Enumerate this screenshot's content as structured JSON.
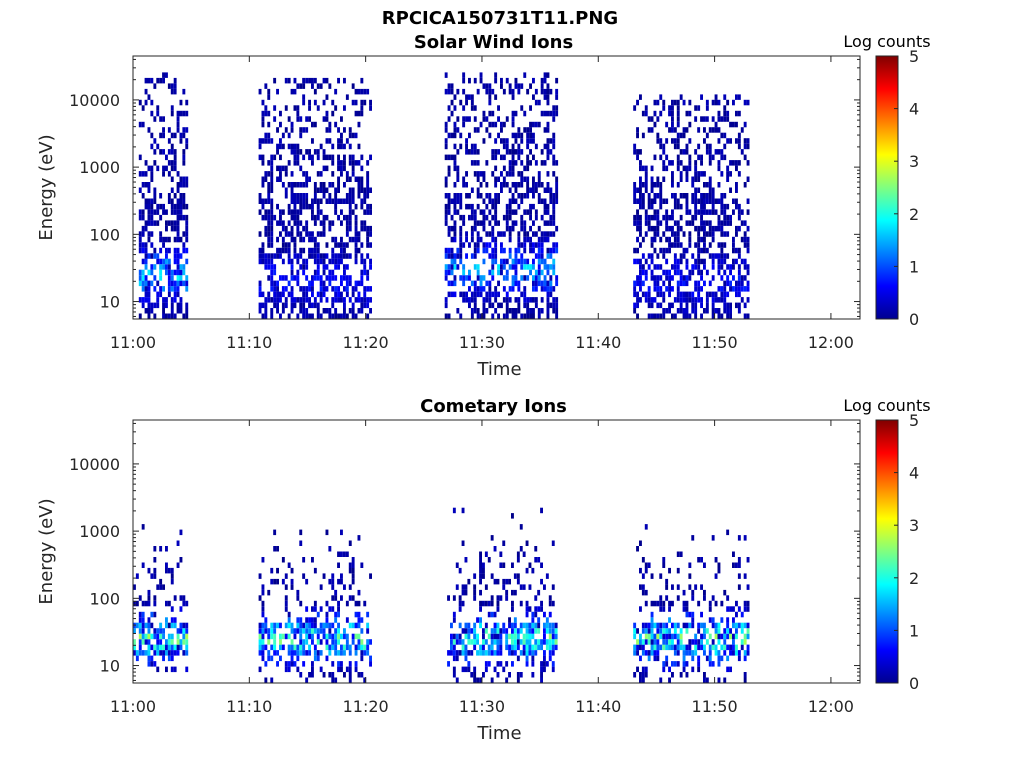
{
  "figure": {
    "filename": "RPCICA150731T11.PNG"
  },
  "chart_data": [
    {
      "type": "heatmap",
      "title": "Solar Wind Ions",
      "xlabel": "Time",
      "ylabel": "Energy (eV)",
      "x_ticks": [
        "11:00",
        "11:10",
        "11:20",
        "11:30",
        "11:40",
        "11:50",
        "12:00"
      ],
      "y_ticks": [
        "10",
        "100",
        "1000",
        "10000"
      ],
      "y_scale": "log",
      "xlim_minutes": [
        0,
        62.5
      ],
      "ylim": [
        5.5,
        45000
      ],
      "colorbar": {
        "label": "Log counts",
        "min": 0,
        "max": 5,
        "ticks": [
          "0",
          "1",
          "2",
          "3",
          "4",
          "5"
        ],
        "colormap": "jet"
      },
      "bursts": [
        {
          "start_min": 0.5,
          "end_min": 4.6,
          "max_energy_ev": 25000,
          "min_energy_ev": 6,
          "peak_log_counts": 2.0,
          "peak_energy_ev": 25
        },
        {
          "start_min": 10.8,
          "end_min": 20.5,
          "max_energy_ev": 22000,
          "min_energy_ev": 6,
          "peak_log_counts": 0.8,
          "peak_energy_ev": 20
        },
        {
          "start_min": 26.8,
          "end_min": 36.4,
          "max_energy_ev": 26000,
          "min_energy_ev": 6,
          "peak_log_counts": 1.8,
          "peak_energy_ev": 30
        },
        {
          "start_min": 43.0,
          "end_min": 52.8,
          "max_energy_ev": 12000,
          "min_energy_ev": 6,
          "peak_log_counts": 0.8,
          "peak_energy_ev": 20
        }
      ]
    },
    {
      "type": "heatmap",
      "title": "Cometary Ions",
      "xlabel": "Time",
      "ylabel": "Energy (eV)",
      "x_ticks": [
        "11:00",
        "11:10",
        "11:20",
        "11:30",
        "11:40",
        "11:50",
        "12:00"
      ],
      "y_ticks": [
        "10",
        "100",
        "1000",
        "10000"
      ],
      "y_scale": "log",
      "xlim_minutes": [
        0,
        62.5
      ],
      "ylim": [
        5.5,
        45000
      ],
      "colorbar": {
        "label": "Log counts",
        "min": 0,
        "max": 5,
        "ticks": [
          "0",
          "1",
          "2",
          "3",
          "4",
          "5"
        ],
        "colormap": "jet"
      },
      "bursts": [
        {
          "start_min": 0.0,
          "end_min": 4.6,
          "max_energy_ev": 1200,
          "min_energy_ev": 8,
          "peak_log_counts": 2.8,
          "peak_energy_ev": 25
        },
        {
          "start_min": 10.8,
          "end_min": 20.5,
          "max_energy_ev": 1300,
          "min_energy_ev": 6,
          "peak_log_counts": 2.6,
          "peak_energy_ev": 25
        },
        {
          "start_min": 27.0,
          "end_min": 36.4,
          "max_energy_ev": 2300,
          "min_energy_ev": 6,
          "peak_log_counts": 2.6,
          "peak_energy_ev": 25
        },
        {
          "start_min": 43.0,
          "end_min": 52.8,
          "max_energy_ev": 1300,
          "min_energy_ev": 6,
          "peak_log_counts": 2.8,
          "peak_energy_ev": 25
        }
      ]
    }
  ]
}
